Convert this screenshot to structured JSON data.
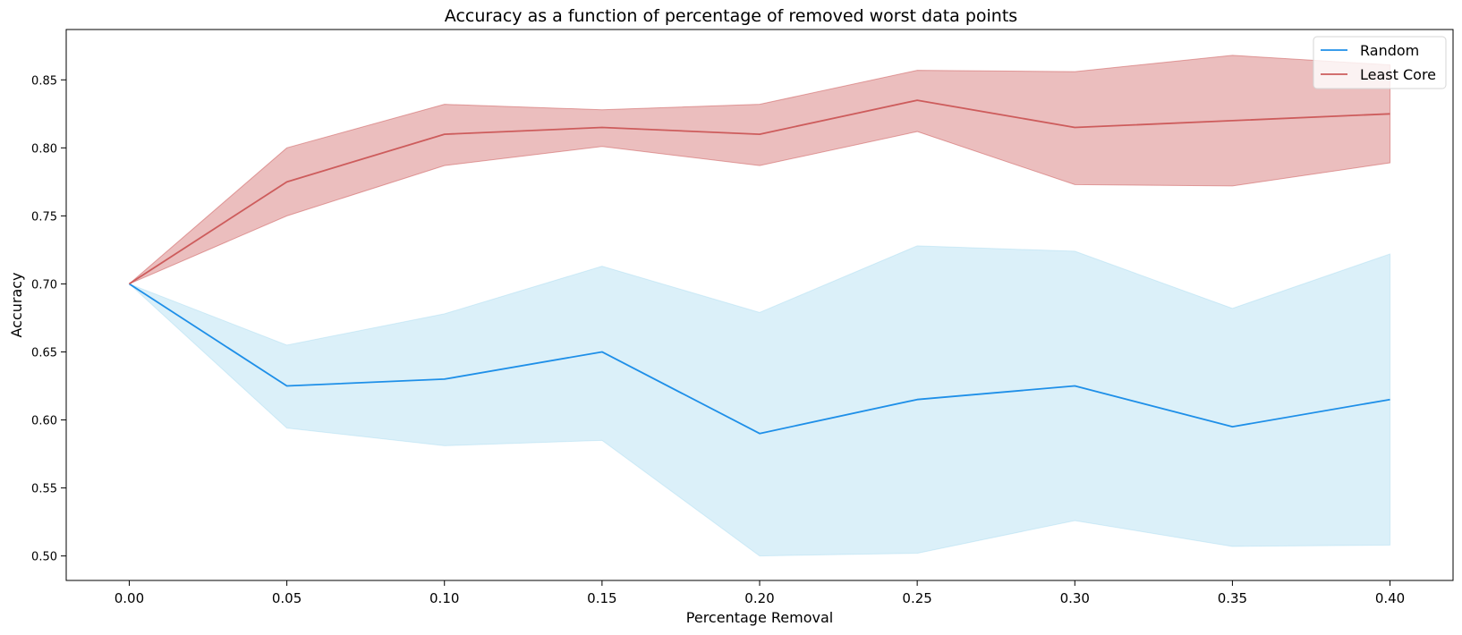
{
  "chart_data": {
    "type": "line",
    "title": "Accuracy as a function of percentage of removed worst data points",
    "xlabel": "Percentage Removal",
    "ylabel": "Accuracy",
    "xlim": [
      -0.02,
      0.42
    ],
    "ylim": [
      0.482,
      0.887
    ],
    "xticks": [
      "0.00",
      "0.05",
      "0.10",
      "0.15",
      "0.20",
      "0.25",
      "0.30",
      "0.35",
      "0.40"
    ],
    "yticks": [
      "0.50",
      "0.55",
      "0.60",
      "0.65",
      "0.70",
      "0.75",
      "0.80",
      "0.85"
    ],
    "grid": false,
    "legend_position": "top-right",
    "x": [
      0.0,
      0.05,
      0.1,
      0.15,
      0.2,
      0.25,
      0.3,
      0.35,
      0.4
    ],
    "series": [
      {
        "name": "Random",
        "color": "#1e8fe8",
        "band_color": "#87ceeb",
        "values": [
          0.7,
          0.625,
          0.63,
          0.65,
          0.59,
          0.615,
          0.625,
          0.595,
          0.615
        ],
        "lower": [
          0.7,
          0.594,
          0.581,
          0.585,
          0.5,
          0.502,
          0.526,
          0.507,
          0.508
        ],
        "upper": [
          0.7,
          0.655,
          0.678,
          0.713,
          0.679,
          0.728,
          0.724,
          0.682,
          0.722
        ]
      },
      {
        "name": "Least Core",
        "color": "#cd5c5c",
        "band_color": "#cd5c5c",
        "values": [
          0.7,
          0.775,
          0.81,
          0.815,
          0.81,
          0.835,
          0.815,
          0.82,
          0.825
        ],
        "lower": [
          0.7,
          0.75,
          0.787,
          0.801,
          0.787,
          0.812,
          0.773,
          0.772,
          0.789
        ],
        "upper": [
          0.7,
          0.8,
          0.832,
          0.828,
          0.832,
          0.857,
          0.856,
          0.868,
          0.861
        ]
      }
    ]
  }
}
